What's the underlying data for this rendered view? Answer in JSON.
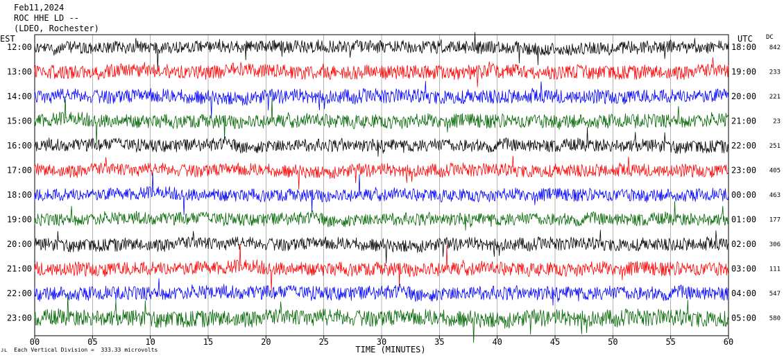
{
  "header": {
    "date": "Feb11,2024",
    "station": "ROC HHE LD --",
    "location": "(LDEO, Rochester)"
  },
  "left_zone": "EST",
  "right_zone": "UTC",
  "dc_label": "DC",
  "footer": {
    "scale_note": "Each Vertical Division =  333.33 microvolts"
  },
  "colors": {
    "black": "#000000",
    "red": "#ff0000",
    "blue": "#0000ff",
    "green": "#006400"
  },
  "chart_data": {
    "type": "line",
    "xlabel": "TIME (MINUTES)",
    "xlim": [
      0,
      60
    ],
    "x_ticks": [
      "00",
      "05",
      "10",
      "15",
      "20",
      "25",
      "30",
      "35",
      "40",
      "45",
      "50",
      "55",
      "60"
    ],
    "rows": [
      {
        "est": "12:00",
        "utc": "18:00",
        "dc": "842",
        "color": "black",
        "amp": 1.0
      },
      {
        "est": "13:00",
        "utc": "19:00",
        "dc": "233",
        "color": "red",
        "amp": 1.1
      },
      {
        "est": "14:00",
        "utc": "20:00",
        "dc": "221",
        "color": "blue",
        "amp": 1.1
      },
      {
        "est": "15:00",
        "utc": "21:00",
        "dc": "23",
        "color": "green",
        "amp": 1.1
      },
      {
        "est": "16:00",
        "utc": "22:00",
        "dc": "251",
        "color": "black",
        "amp": 1.0
      },
      {
        "est": "17:00",
        "utc": "23:00",
        "dc": "405",
        "color": "red",
        "amp": 1.0
      },
      {
        "est": "18:00",
        "utc": "00:00",
        "dc": "463",
        "color": "blue",
        "amp": 1.0
      },
      {
        "est": "19:00",
        "utc": "01:00",
        "dc": "177",
        "color": "green",
        "amp": 1.0
      },
      {
        "est": "20:00",
        "utc": "02:00",
        "dc": "306",
        "color": "black",
        "amp": 1.0
      },
      {
        "est": "21:00",
        "utc": "03:00",
        "dc": "111",
        "color": "red",
        "amp": 1.1
      },
      {
        "est": "22:00",
        "utc": "04:00",
        "dc": "547",
        "color": "blue",
        "amp": 1.1
      },
      {
        "est": "23:00",
        "utc": "05:00",
        "dc": "580",
        "color": "green",
        "amp": 1.3
      }
    ]
  }
}
